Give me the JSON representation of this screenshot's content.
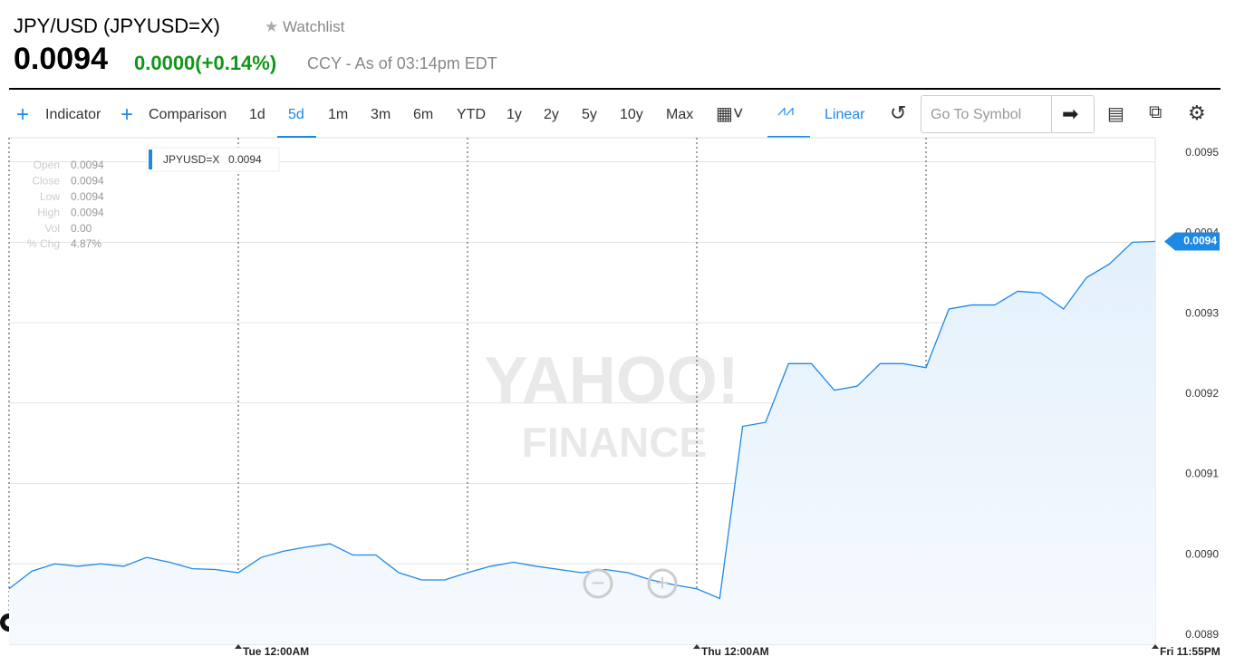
{
  "header": {
    "title": "JPY/USD (JPYUSD=X)",
    "watchlist": "Watchlist",
    "price": "0.0094",
    "change": "0.0000",
    "change_pct": "(+0.14%)",
    "note": "CCY - As of 03:14pm EDT"
  },
  "toolbar": {
    "indicator": "Indicator",
    "comparison": "Comparison",
    "ranges": [
      "1d",
      "5d",
      "1m",
      "3m",
      "6m",
      "YTD",
      "1y",
      "2y",
      "5y",
      "10y",
      "Max"
    ],
    "scale": "Linear",
    "search_placeholder": "Go To Symbol"
  },
  "ohlc": [
    {
      "label": "Open",
      "value": "0.0094"
    },
    {
      "label": "Close",
      "value": "0.0094"
    },
    {
      "label": "Low",
      "value": "0.0094"
    },
    {
      "label": "High",
      "value": "0.0094"
    },
    {
      "label": "Vol",
      "value": "0.00"
    },
    {
      "label": "% Chg",
      "value": "4.87%"
    }
  ],
  "watermark": {
    "line1": "YAHOO!",
    "line2": "FINANCE"
  },
  "chart_data": {
    "type": "line",
    "categories": [
      null,
      null,
      null,
      null,
      null,
      null,
      null,
      null,
      null,
      null,
      "Tue 12:00AM",
      null,
      null,
      null,
      null,
      null,
      null,
      null,
      null,
      null,
      null,
      null,
      null,
      null,
      null,
      null,
      null,
      null,
      null,
      null,
      "Thu 12:00AM",
      null,
      null,
      null,
      null,
      null,
      null,
      null,
      null,
      null,
      null,
      null,
      null,
      null,
      null,
      null,
      null,
      null,
      null,
      null,
      "Fri 11:55PM"
    ],
    "series": [
      {
        "name": "JPYUSD=X",
        "color": "#1e88e5",
        "values": [
          0.008969,
          0.008991,
          0.009,
          0.008997,
          0.009,
          0.008997,
          0.009008,
          0.009002,
          0.008994,
          0.008993,
          0.008989,
          0.009008,
          0.009016,
          0.009021,
          0.009025,
          0.009011,
          0.009011,
          0.008989,
          0.00898,
          0.00898,
          0.008989,
          0.008997,
          0.009002,
          0.008997,
          0.008993,
          0.008989,
          0.008993,
          0.008989,
          0.00898,
          0.008974,
          0.008969,
          0.008957,
          0.009171,
          0.009176,
          0.009249,
          0.009249,
          0.009216,
          0.009221,
          0.009249,
          0.009249,
          0.009244,
          0.009317,
          0.009322,
          0.009322,
          0.009339,
          0.009337,
          0.009317,
          0.009356,
          0.009373,
          0.0094,
          0.009401
        ]
      }
    ],
    "legend_value": "0.0094",
    "last_price_label": "0.0094",
    "ylim": [
      0.0089,
      0.00953
    ],
    "yticks": [
      0.0089,
      {
        "value": 0.009,
        "label": "0.0090"
      },
      0.0091,
      0.0092,
      0.0093,
      0.0094,
      0.0095
    ],
    "grid": true
  }
}
